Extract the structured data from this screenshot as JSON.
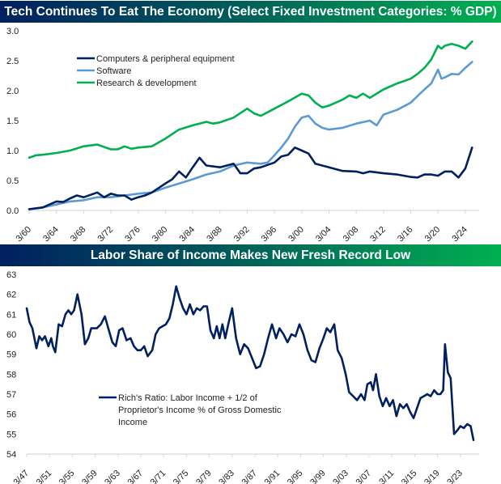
{
  "chart_data": [
    {
      "type": "line",
      "title": "Tech Continues To Eat The Economy (Select Fixed Investment Categories: % GDP)",
      "xlabel": "",
      "ylabel": "",
      "ylim": [
        0,
        3.0
      ],
      "yticks": [
        "0.0",
        "0.5",
        "1.0",
        "1.5",
        "2.0",
        "2.5",
        "3.0"
      ],
      "ytick_values": [
        0,
        0.5,
        1.0,
        1.5,
        2.0,
        2.5,
        3.0
      ],
      "xlim": [
        1960,
        2026
      ],
      "xticks": [
        "3/60",
        "3/64",
        "3/68",
        "3/72",
        "3/76",
        "3/80",
        "3/84",
        "3/88",
        "3/92",
        "3/96",
        "3/00",
        "3/04",
        "3/08",
        "3/12",
        "3/16",
        "3/20",
        "3/24"
      ],
      "xtick_years": [
        1960,
        1964,
        1968,
        1972,
        1976,
        1980,
        1984,
        1988,
        1992,
        1996,
        2000,
        2004,
        2008,
        2012,
        2016,
        2020,
        2024
      ],
      "grid": false,
      "legend_position": "top-left",
      "series": [
        {
          "name": "Computers & peripheral equipment",
          "color": "#002060",
          "x": [
            1960,
            1962,
            1964,
            1965,
            1966,
            1967,
            1968,
            1970,
            1971,
            1972,
            1973,
            1974,
            1975,
            1976,
            1977,
            1978,
            1980,
            1981,
            1982,
            1983,
            1984,
            1985,
            1986,
            1988,
            1990,
            1991,
            1992,
            1993,
            1994,
            1996,
            1997,
            1998,
            1999,
            2000,
            2001,
            2002,
            2003,
            2004,
            2006,
            2008,
            2009,
            2010,
            2012,
            2014,
            2016,
            2017,
            2018,
            2019,
            2020,
            2021,
            2022,
            2023,
            2024,
            2025
          ],
          "values": [
            0.02,
            0.05,
            0.15,
            0.14,
            0.2,
            0.25,
            0.22,
            0.3,
            0.22,
            0.28,
            0.25,
            0.25,
            0.18,
            0.22,
            0.25,
            0.3,
            0.45,
            0.52,
            0.65,
            0.55,
            0.72,
            0.88,
            0.75,
            0.72,
            0.78,
            0.62,
            0.62,
            0.7,
            0.72,
            0.8,
            0.9,
            0.93,
            1.05,
            1.0,
            0.95,
            0.78,
            0.75,
            0.72,
            0.66,
            0.65,
            0.62,
            0.65,
            0.62,
            0.6,
            0.56,
            0.55,
            0.6,
            0.6,
            0.58,
            0.65,
            0.65,
            0.55,
            0.7,
            1.05
          ]
        },
        {
          "name": "Software",
          "color": "#5b9bd5",
          "x": [
            1960,
            1962,
            1964,
            1966,
            1968,
            1970,
            1972,
            1974,
            1976,
            1978,
            1980,
            1982,
            1984,
            1986,
            1988,
            1990,
            1992,
            1994,
            1995,
            1996,
            1997,
            1998,
            1999,
            2000,
            2001,
            2002,
            2003,
            2004,
            2006,
            2008,
            2010,
            2011,
            2012,
            2014,
            2016,
            2018,
            2019,
            2020,
            2020.5,
            2021,
            2022,
            2023,
            2024,
            2025
          ],
          "values": [
            0.02,
            0.05,
            0.1,
            0.15,
            0.17,
            0.22,
            0.22,
            0.25,
            0.28,
            0.3,
            0.38,
            0.45,
            0.52,
            0.6,
            0.65,
            0.75,
            0.8,
            0.78,
            0.8,
            0.92,
            1.05,
            1.2,
            1.4,
            1.55,
            1.58,
            1.45,
            1.38,
            1.35,
            1.38,
            1.45,
            1.5,
            1.42,
            1.6,
            1.68,
            1.8,
            2.02,
            2.12,
            2.35,
            2.2,
            2.22,
            2.28,
            2.27,
            2.38,
            2.48
          ]
        },
        {
          "name": "Research & development",
          "color": "#00b050",
          "x": [
            1960,
            1961,
            1962,
            1964,
            1966,
            1968,
            1970,
            1972,
            1973,
            1974,
            1975,
            1976,
            1978,
            1980,
            1982,
            1984,
            1986,
            1987,
            1988,
            1990,
            1992,
            1993,
            1994,
            1996,
            1998,
            2000,
            2001,
            2002,
            2003,
            2004,
            2006,
            2007,
            2008,
            2009,
            2010,
            2012,
            2014,
            2016,
            2017,
            2018,
            2019,
            2020,
            2020.5,
            2021,
            2022,
            2023,
            2024,
            2025
          ],
          "values": [
            0.88,
            0.92,
            0.93,
            0.96,
            1.0,
            1.07,
            1.1,
            1.02,
            1.02,
            1.07,
            1.03,
            1.05,
            1.07,
            1.2,
            1.35,
            1.42,
            1.48,
            1.45,
            1.47,
            1.55,
            1.7,
            1.62,
            1.58,
            1.7,
            1.82,
            1.95,
            1.92,
            1.8,
            1.72,
            1.75,
            1.85,
            1.92,
            1.88,
            1.95,
            1.88,
            2.02,
            2.12,
            2.2,
            2.28,
            2.38,
            2.52,
            2.75,
            2.7,
            2.75,
            2.78,
            2.75,
            2.7,
            2.82
          ]
        }
      ]
    },
    {
      "type": "line",
      "title": "Labor Share of Income Makes New Fresh Record Low",
      "xlabel": "",
      "ylabel": "",
      "ylim": [
        54,
        63
      ],
      "yticks": [
        "54",
        "55",
        "56",
        "57",
        "58",
        "59",
        "60",
        "61",
        "62",
        "63"
      ],
      "ytick_values": [
        54,
        55,
        56,
        57,
        58,
        59,
        60,
        61,
        62,
        63
      ],
      "xlim": [
        1947,
        2026
      ],
      "xticks": [
        "3/47",
        "3/51",
        "3/55",
        "3/59",
        "3/63",
        "3/67",
        "3/71",
        "3/75",
        "3/79",
        "3/83",
        "3/87",
        "3/91",
        "3/95",
        "3/99",
        "3/03",
        "3/07",
        "3/11",
        "3/15",
        "3/19",
        "3/23"
      ],
      "xtick_years": [
        1947,
        1951,
        1955,
        1959,
        1963,
        1967,
        1971,
        1975,
        1979,
        1983,
        1987,
        1991,
        1995,
        1999,
        2003,
        2007,
        2011,
        2015,
        2019,
        2023
      ],
      "grid": false,
      "legend_position": "bottom-center",
      "series": [
        {
          "name": "Rich's Ratio: Labor Income + 1/2 of Proprietor's Income % of Gross Domestic Income",
          "color": "#002060",
          "x": [
            1947,
            1947.5,
            1948,
            1948.7,
            1949.2,
            1949.7,
            1950.2,
            1950.8,
            1951.3,
            1951.6,
            1952,
            1952.6,
            1953.2,
            1953.8,
            1954.3,
            1954.8,
            1955.3,
            1955.9,
            1956.6,
            1957.2,
            1957.8,
            1958.3,
            1958.8,
            1959.3,
            1960,
            1960.7,
            1961.3,
            1962,
            1962.6,
            1963.2,
            1963.8,
            1964.5,
            1965.2,
            1965.8,
            1966.4,
            1967,
            1967.6,
            1968.2,
            1969,
            1969.6,
            1970.2,
            1970.8,
            1971.4,
            1972,
            1972.6,
            1973.2,
            1973.8,
            1974.4,
            1975,
            1975.6,
            1976.2,
            1976.8,
            1977.4,
            1978,
            1978.6,
            1979.2,
            1979.8,
            1980.3,
            1980.8,
            1981.3,
            1981.8,
            1982.4,
            1983,
            1983.7,
            1984.4,
            1985.1,
            1985.8,
            1986.5,
            1987.2,
            1987.9,
            1988.6,
            1989.3,
            1990,
            1990.7,
            1991.3,
            1992,
            1992.7,
            1993.4,
            1994.1,
            1994.8,
            1995.5,
            1996.2,
            1996.9,
            1997.6,
            1998.3,
            1999,
            1999.6,
            2000.2,
            2000.9,
            2001.5,
            2002.2,
            2002.9,
            2003.5,
            2004.2,
            2004.9,
            2005.6,
            2006.2,
            2006.7,
            2007.3,
            2007.7,
            2008.2,
            2008.8,
            2009.4,
            2010,
            2010.6,
            2011.2,
            2011.8,
            2012.4,
            2013,
            2013.6,
            2014.2,
            2014.8,
            2015.4,
            2016,
            2016.6,
            2017.2,
            2017.8,
            2018.4,
            2019,
            2019.5,
            2020,
            2020.3,
            2020.8,
            2021.3,
            2021.9,
            2022.5,
            2023,
            2023.6,
            2024.2,
            2024.8,
            2025.3
          ],
          "values": [
            61.3,
            60.6,
            60.3,
            59.3,
            59.9,
            59.7,
            59.9,
            59.4,
            59.8,
            59.4,
            59.1,
            60.5,
            60.4,
            61.0,
            61.2,
            61.0,
            61.2,
            62.0,
            61.0,
            59.5,
            59.8,
            60.3,
            60.3,
            60.3,
            60.5,
            60.9,
            60.3,
            59.6,
            59.4,
            60.2,
            60.3,
            59.7,
            59.8,
            59.4,
            59.2,
            59.2,
            59.4,
            58.9,
            59.2,
            60.0,
            60.3,
            60.4,
            60.5,
            60.8,
            61.5,
            62.4,
            61.8,
            61.3,
            61.0,
            61.5,
            61.0,
            61.3,
            61.2,
            61.4,
            61.4,
            60.2,
            59.8,
            60.4,
            59.8,
            60.5,
            59.8,
            60.6,
            61.3,
            59.8,
            59.0,
            59.5,
            59.3,
            58.8,
            58.3,
            58.4,
            59.0,
            59.8,
            60.5,
            59.8,
            60.3,
            60.0,
            59.6,
            60.0,
            59.9,
            60.5,
            60.0,
            59.2,
            58.7,
            58.6,
            59.3,
            59.8,
            60.3,
            60.1,
            60.5,
            59.2,
            58.8,
            58.0,
            57.1,
            56.9,
            56.7,
            57.0,
            56.7,
            57.5,
            57.6,
            57.2,
            58.0,
            56.9,
            56.4,
            56.8,
            56.4,
            56.7,
            55.9,
            56.5,
            56.3,
            56.5,
            56.1,
            55.8,
            56.3,
            56.8,
            56.9,
            57.0,
            56.9,
            57.2,
            57.0,
            57.0,
            57.2,
            59.5,
            58.1,
            57.8,
            55.0,
            55.2,
            55.4,
            55.3,
            55.5,
            55.4,
            54.7
          ]
        }
      ]
    }
  ]
}
